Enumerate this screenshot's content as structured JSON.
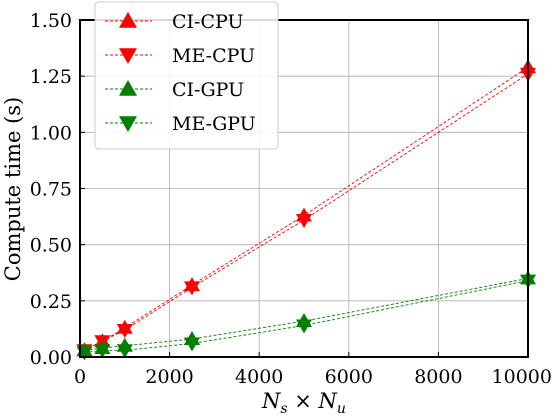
{
  "chart_data": {
    "type": "line",
    "title": "",
    "xlabel": "N_s × N_u",
    "ylabel": "Compute time (s)",
    "xlim": [
      0,
      10000
    ],
    "ylim": [
      0.0,
      1.5
    ],
    "xticks": [
      0,
      2000,
      4000,
      6000,
      8000,
      10000
    ],
    "xtick_labels": [
      "0",
      "2000",
      "4000",
      "6000",
      "8000",
      "10000"
    ],
    "yticks": [
      0.0,
      0.25,
      0.5,
      0.75,
      1.0,
      1.25,
      1.5
    ],
    "ytick_labels": [
      "0.00",
      "0.25",
      "0.50",
      "0.75",
      "1.00",
      "1.25",
      "1.50"
    ],
    "grid": true,
    "legend_position": "top-left",
    "series": [
      {
        "name": "CI-CPU",
        "color": "#ff0000",
        "marker": "triangle-up",
        "x": [
          100,
          500,
          1000,
          2500,
          5000,
          10000
        ],
        "y": [
          0.03,
          0.07,
          0.13,
          0.32,
          0.63,
          1.29
        ]
      },
      {
        "name": "ME-CPU",
        "color": "#ff0000",
        "marker": "triangle-down",
        "x": [
          100,
          500,
          1000,
          2500,
          5000,
          10000
        ],
        "y": [
          0.03,
          0.07,
          0.12,
          0.31,
          0.61,
          1.26
        ]
      },
      {
        "name": "CI-GPU",
        "color": "#008000",
        "marker": "triangle-up",
        "x": [
          100,
          500,
          1000,
          2500,
          5000,
          10000
        ],
        "y": [
          0.03,
          0.04,
          0.05,
          0.08,
          0.16,
          0.35
        ]
      },
      {
        "name": "ME-GPU",
        "color": "#008000",
        "marker": "triangle-down",
        "x": [
          100,
          500,
          1000,
          2500,
          5000,
          10000
        ],
        "y": [
          0.02,
          0.03,
          0.03,
          0.06,
          0.14,
          0.34
        ]
      }
    ]
  }
}
